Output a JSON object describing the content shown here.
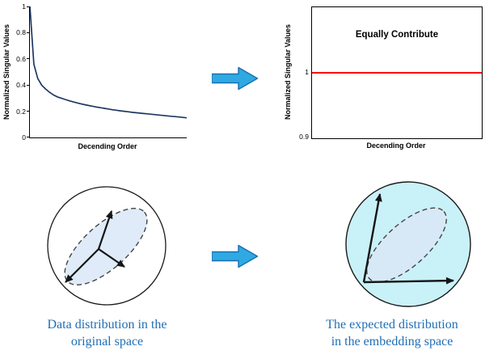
{
  "colors": {
    "decay_curve": "#1F3864",
    "equal_line": "#FF0000",
    "arrow_fill": "#2FA9E2",
    "arrow_outline": "#1A6FAE",
    "ellipse_fill": "#DBE9F7",
    "embedding_sphere_fill": "#C9F1F8",
    "caption_text": "#1F6EB5"
  },
  "left_chart": {
    "ylabel": "Normalized Singular Values",
    "xlabel": "Decending Order",
    "yticks": [
      "1",
      "0.8",
      "0.6",
      "0.4",
      "0.2",
      "0"
    ]
  },
  "right_chart": {
    "ylabel": "Normalized Singular Values",
    "xlabel": "Decending Order",
    "annotation": "Equally Contribute",
    "yticks": [
      "1",
      "0.9"
    ]
  },
  "captions": {
    "left": [
      "Data distribution in the",
      "original space"
    ],
    "right": [
      "The expected distribution",
      "in the embedding space"
    ]
  },
  "diagrams": {
    "left": {
      "caption": "Data distribution in the original space",
      "shape": "white circle containing a tilted dashed ellipse with three unequal principal-direction arrows"
    },
    "right": {
      "caption": "The expected distribution in the embedding space",
      "shape": "cyan circle containing a tilted dashed ellipse with two equal-length arrows reaching the sphere boundary"
    }
  },
  "chart_data": [
    {
      "type": "line",
      "title": "",
      "xlabel": "Decending Order",
      "ylabel": "Normalized Singular Values",
      "ylim": [
        0,
        1
      ],
      "yticks": [
        0,
        0.2,
        0.4,
        0.6,
        0.8,
        1
      ],
      "grid": false,
      "series": [
        {
          "name": "normalized singular values (original space)",
          "color": "#1F3864",
          "y_values": [
            1.0,
            0.56,
            0.45,
            0.4,
            0.37,
            0.345,
            0.325,
            0.31,
            0.3,
            0.29,
            0.28,
            0.272,
            0.264,
            0.257,
            0.25,
            0.244,
            0.238,
            0.232,
            0.227,
            0.222,
            0.217,
            0.212,
            0.208,
            0.204,
            0.2,
            0.196,
            0.192,
            0.189,
            0.186,
            0.183,
            0.18,
            0.177,
            0.174,
            0.171,
            0.168,
            0.165,
            0.162,
            0.159,
            0.156,
            0.153,
            0.15
          ]
        }
      ],
      "description": "Sharp initial decay of normalized singular values followed by a long flat tail ending near 0.15"
    },
    {
      "type": "line",
      "title": "",
      "annotation": "Equally Contribute",
      "xlabel": "Decending Order",
      "ylabel": "Normalized Singular Values",
      "ylim": [
        0.9,
        1.1
      ],
      "yticks": [
        0.9,
        1
      ],
      "grid": false,
      "series": [
        {
          "name": "normalized singular values (embedding space)",
          "color": "#FF0000",
          "y_values": [
            1,
            1
          ]
        }
      ],
      "description": "Constant red horizontal line at 1: all singular values contribute equally"
    }
  ]
}
